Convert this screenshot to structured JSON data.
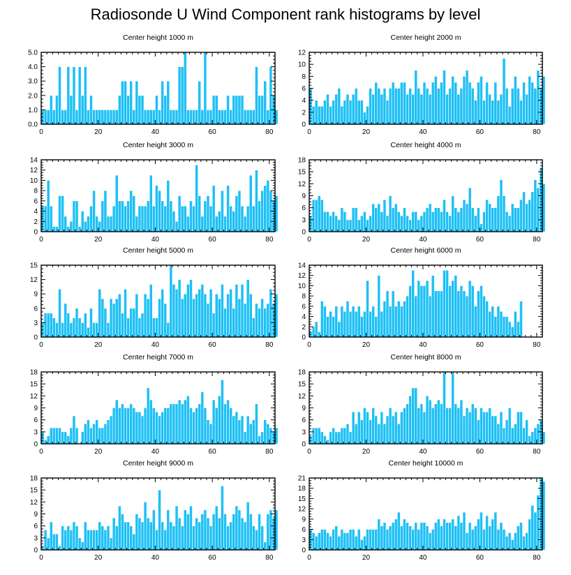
{
  "title": "Radiosonde U Wind Component rank histograms by level",
  "colors": {
    "bar": "#1EC0F5",
    "bar_edge": "#ffffff",
    "axis": "#000000"
  },
  "chart_data": [
    {
      "type": "bar",
      "title": "Center height 1000 m",
      "xlim": [
        0,
        82
      ],
      "xticks": [
        0,
        20,
        40,
        60,
        80
      ],
      "ylim": [
        0,
        5
      ],
      "yticks": [
        0,
        1,
        2,
        3,
        4,
        5
      ],
      "ytick_labels": [
        "0.0",
        "1.0",
        "2.0",
        "3.0",
        "4.0",
        "5.0"
      ],
      "values": [
        1,
        1,
        1,
        2,
        1,
        2,
        4,
        1,
        1,
        4,
        2,
        4,
        1,
        4,
        2,
        4,
        1,
        2,
        1,
        1,
        1,
        1,
        1,
        1,
        1,
        1,
        1,
        2,
        3,
        3,
        2,
        3,
        1,
        3,
        2,
        2,
        1,
        1,
        1,
        1,
        2,
        1,
        3,
        2,
        3,
        1,
        1,
        1,
        4,
        4,
        5,
        1,
        1,
        1,
        1,
        3,
        1,
        5,
        1,
        1,
        2,
        2,
        1,
        1,
        1,
        2,
        1,
        2,
        2,
        2,
        2,
        1,
        1,
        1,
        1,
        4,
        2,
        2,
        3,
        1,
        4,
        2,
        1
      ]
    },
    {
      "type": "bar",
      "title": "Center height 2000 m",
      "xlim": [
        0,
        82
      ],
      "xticks": [
        0,
        20,
        40,
        60,
        80
      ],
      "ylim": [
        0,
        12
      ],
      "yticks": [
        0,
        2,
        4,
        6,
        8,
        10,
        12
      ],
      "ytick_labels": [
        "0",
        "2",
        "4",
        "6",
        "8",
        "10",
        "12"
      ],
      "values": [
        6,
        3,
        4,
        3,
        3,
        4,
        5,
        3,
        4,
        5,
        6,
        3,
        4,
        5,
        4,
        5,
        6,
        4,
        4,
        2,
        3,
        6,
        5,
        7,
        6,
        5,
        6,
        4,
        6,
        7,
        6,
        6,
        7,
        7,
        5,
        6,
        5,
        9,
        6,
        5,
        7,
        6,
        5,
        7,
        8,
        6,
        7,
        9,
        5,
        6,
        8,
        7,
        5,
        6,
        8,
        9,
        7,
        6,
        4,
        7,
        8,
        4,
        7,
        5,
        4,
        7,
        4,
        5,
        11,
        6,
        3,
        6,
        8,
        6,
        4,
        7,
        5,
        8,
        7,
        6,
        9,
        6,
        8
      ]
    },
    {
      "type": "bar",
      "title": "Center height 3000 m",
      "xlim": [
        0,
        82
      ],
      "xticks": [
        0,
        20,
        40,
        60,
        80
      ],
      "ylim": [
        0,
        14
      ],
      "yticks": [
        0,
        2,
        4,
        6,
        8,
        10,
        12,
        14
      ],
      "ytick_labels": [
        "0",
        "2",
        "4",
        "6",
        "8",
        "10",
        "12",
        "14"
      ],
      "values": [
        5,
        5,
        10,
        5,
        1,
        1,
        7,
        7,
        3,
        1,
        2,
        6,
        6,
        1,
        4,
        2,
        3,
        5,
        8,
        3,
        2,
        6,
        8,
        3,
        3,
        5,
        11,
        6,
        6,
        5,
        6,
        8,
        7,
        3,
        5,
        5,
        5,
        6,
        11,
        5,
        9,
        8,
        6,
        5,
        10,
        6,
        4,
        2,
        7,
        5,
        5,
        3,
        6,
        5,
        13,
        7,
        3,
        6,
        7,
        5,
        9,
        3,
        4,
        8,
        3,
        9,
        5,
        4,
        7,
        8,
        5,
        3,
        5,
        11,
        5,
        12,
        6,
        8,
        9,
        10,
        8,
        6,
        7
      ]
    },
    {
      "type": "bar",
      "title": "Center height 4000 m",
      "xlim": [
        0,
        82
      ],
      "xticks": [
        0,
        20,
        40,
        60,
        80
      ],
      "ylim": [
        0,
        18
      ],
      "yticks": [
        0,
        3,
        6,
        9,
        12,
        15,
        18
      ],
      "ytick_labels": [
        "0",
        "3",
        "6",
        "9",
        "12",
        "15",
        "18"
      ],
      "values": [
        4,
        8,
        8,
        9,
        8,
        5,
        5,
        4,
        5,
        4,
        3,
        6,
        5,
        3,
        3,
        6,
        6,
        3,
        4,
        5,
        3,
        4,
        7,
        6,
        7,
        5,
        8,
        4,
        9,
        6,
        7,
        5,
        4,
        6,
        4,
        3,
        5,
        5,
        3,
        4,
        5,
        6,
        7,
        5,
        6,
        6,
        5,
        8,
        5,
        4,
        9,
        6,
        5,
        6,
        8,
        7,
        11,
        6,
        4,
        6,
        2,
        5,
        8,
        7,
        6,
        6,
        9,
        13,
        9,
        5,
        4,
        7,
        6,
        6,
        8,
        10,
        7,
        8,
        10,
        13,
        11,
        16,
        12
      ]
    },
    {
      "type": "bar",
      "title": "Center height 5000 m",
      "xlim": [
        0,
        82
      ],
      "xticks": [
        0,
        20,
        40,
        60,
        80
      ],
      "ylim": [
        0,
        15
      ],
      "yticks": [
        0,
        3,
        6,
        9,
        12,
        15
      ],
      "ytick_labels": [
        "0",
        "3",
        "6",
        "9",
        "12",
        "15"
      ],
      "values": [
        3,
        5,
        5,
        5,
        4,
        3,
        10,
        3,
        7,
        5,
        3,
        4,
        6,
        4,
        3,
        5,
        2,
        6,
        3,
        3,
        10,
        8,
        6,
        3,
        8,
        7,
        8,
        9,
        5,
        10,
        4,
        6,
        6,
        9,
        4,
        5,
        9,
        8,
        11,
        4,
        4,
        8,
        10,
        7,
        3,
        15,
        11,
        10,
        12,
        8,
        9,
        11,
        12,
        8,
        9,
        10,
        11,
        9,
        7,
        10,
        5,
        9,
        8,
        11,
        6,
        9,
        10,
        6,
        11,
        8,
        11,
        7,
        12,
        9,
        4,
        7,
        6,
        8,
        6,
        7,
        10,
        7,
        9
      ]
    },
    {
      "type": "bar",
      "title": "Center height 6000 m",
      "xlim": [
        0,
        82
      ],
      "xticks": [
        0,
        20,
        40,
        60,
        80
      ],
      "ylim": [
        0,
        14
      ],
      "yticks": [
        0,
        2,
        4,
        6,
        8,
        10,
        12,
        14
      ],
      "ytick_labels": [
        "0",
        "2",
        "4",
        "6",
        "8",
        "10",
        "12",
        "14"
      ],
      "values": [
        1,
        2,
        3,
        1,
        7,
        6,
        4,
        5,
        4,
        6,
        3,
        6,
        5,
        7,
        5,
        6,
        5,
        6,
        4,
        5,
        11,
        5,
        6,
        4,
        12,
        5,
        7,
        9,
        6,
        9,
        6,
        7,
        6,
        7,
        8,
        10,
        13,
        8,
        11,
        10,
        10,
        11,
        8,
        12,
        9,
        9,
        9,
        13,
        13,
        10,
        11,
        12,
        9,
        10,
        9,
        8,
        11,
        10,
        6,
        9,
        10,
        8,
        7,
        5,
        6,
        4,
        6,
        5,
        4,
        4,
        3,
        2,
        5,
        3,
        7
      ]
    },
    {
      "type": "bar",
      "title": "Center height 7000 m",
      "xlim": [
        0,
        82
      ],
      "xticks": [
        0,
        20,
        40,
        60,
        80
      ],
      "ylim": [
        0,
        18
      ],
      "yticks": [
        0,
        3,
        6,
        9,
        12,
        15,
        18
      ],
      "ytick_labels": [
        "0",
        "3",
        "6",
        "9",
        "12",
        "15",
        "18"
      ],
      "values": [
        3,
        1,
        2,
        4,
        4,
        4,
        4,
        3,
        3,
        2,
        4,
        7,
        4,
        0,
        3,
        5,
        6,
        4,
        5,
        6,
        4,
        4,
        5,
        6,
        7,
        9,
        11,
        9,
        10,
        9,
        9,
        10,
        9,
        8,
        8,
        7,
        9,
        14,
        11,
        9,
        8,
        7,
        8,
        9,
        9,
        10,
        10,
        10,
        11,
        10,
        11,
        12,
        9,
        8,
        9,
        10,
        13,
        9,
        6,
        5,
        11,
        9,
        12,
        16,
        10,
        11,
        9,
        7,
        8,
        6,
        7,
        3,
        7,
        5,
        6,
        10,
        2,
        3,
        6,
        5,
        4,
        3,
        4
      ]
    },
    {
      "type": "bar",
      "title": "Center height 8000 m",
      "xlim": [
        0,
        82
      ],
      "xticks": [
        0,
        20,
        40,
        60,
        80
      ],
      "ylim": [
        0,
        18
      ],
      "yticks": [
        0,
        3,
        6,
        9,
        12,
        15,
        18
      ],
      "ytick_labels": [
        "0",
        "3",
        "6",
        "9",
        "12",
        "15",
        "18"
      ],
      "values": [
        2,
        4,
        4,
        4,
        3,
        2,
        1,
        3,
        4,
        3,
        3,
        4,
        4,
        5,
        3,
        8,
        5,
        8,
        6,
        9,
        8,
        6,
        9,
        7,
        5,
        8,
        5,
        7,
        9,
        7,
        8,
        5,
        8,
        9,
        10,
        12,
        14,
        14,
        9,
        10,
        8,
        12,
        11,
        9,
        10,
        11,
        10,
        18,
        9,
        9,
        18,
        10,
        9,
        11,
        7,
        9,
        8,
        10,
        9,
        6,
        9,
        8,
        8,
        9,
        7,
        7,
        5,
        8,
        4,
        6,
        9,
        4,
        5,
        8,
        8,
        4,
        6,
        2,
        3,
        4,
        5,
        6,
        3
      ]
    },
    {
      "type": "bar",
      "title": "Center height 9000 m",
      "xlim": [
        0,
        82
      ],
      "xticks": [
        0,
        20,
        40,
        60,
        80
      ],
      "ylim": [
        0,
        18
      ],
      "yticks": [
        0,
        3,
        6,
        9,
        12,
        15,
        18
      ],
      "ytick_labels": [
        "0",
        "3",
        "6",
        "9",
        "12",
        "15",
        "18"
      ],
      "values": [
        1,
        5,
        3,
        7,
        4,
        4,
        1,
        6,
        5,
        6,
        5,
        7,
        6,
        3,
        2,
        7,
        5,
        5,
        5,
        5,
        7,
        6,
        5,
        6,
        3,
        8,
        6,
        11,
        9,
        7,
        7,
        6,
        4,
        9,
        8,
        7,
        12,
        8,
        7,
        10,
        5,
        15,
        7,
        5,
        10,
        7,
        6,
        11,
        8,
        6,
        10,
        9,
        11,
        6,
        8,
        7,
        9,
        10,
        8,
        6,
        9,
        11,
        8,
        16,
        9,
        6,
        7,
        9,
        11,
        10,
        8,
        7,
        12,
        9,
        6,
        5,
        9,
        6,
        2,
        9,
        10,
        8,
        10
      ]
    },
    {
      "type": "bar",
      "title": "Center height 10000 m",
      "xlim": [
        0,
        82
      ],
      "xticks": [
        0,
        20,
        40,
        60,
        80
      ],
      "ylim": [
        0,
        21
      ],
      "yticks": [
        0,
        3,
        6,
        9,
        12,
        15,
        18,
        21
      ],
      "ytick_labels": [
        "0",
        "3",
        "6",
        "9",
        "12",
        "15",
        "18",
        "21"
      ],
      "values": [
        6,
        5,
        4,
        5,
        6,
        6,
        5,
        4,
        6,
        7,
        4,
        6,
        5,
        5,
        6,
        6,
        4,
        6,
        3,
        4,
        6,
        6,
        6,
        6,
        9,
        7,
        8,
        6,
        7,
        8,
        9,
        11,
        7,
        9,
        8,
        7,
        6,
        8,
        6,
        8,
        8,
        7,
        5,
        6,
        8,
        9,
        7,
        9,
        8,
        8,
        9,
        7,
        10,
        8,
        11,
        5,
        8,
        6,
        7,
        9,
        11,
        6,
        10,
        7,
        9,
        11,
        6,
        8,
        6,
        4,
        5,
        3,
        5,
        7,
        8,
        4,
        5,
        9,
        13,
        11,
        16,
        21,
        20
      ]
    }
  ]
}
